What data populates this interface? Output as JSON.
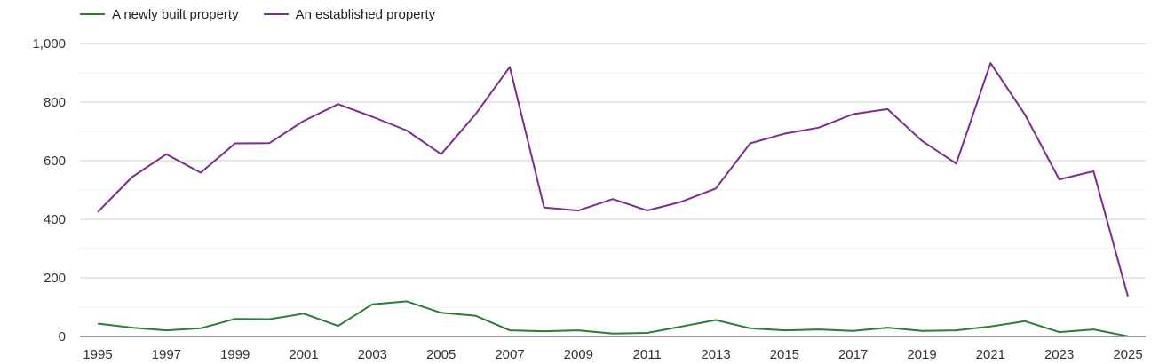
{
  "chart_data": {
    "type": "line",
    "title": "",
    "xlabel": "",
    "ylabel": "",
    "x": [
      1995,
      1996,
      1997,
      1998,
      1999,
      2000,
      2001,
      2002,
      2003,
      2004,
      2005,
      2006,
      2007,
      2008,
      2009,
      2010,
      2011,
      2012,
      2013,
      2014,
      2015,
      2016,
      2017,
      2018,
      2019,
      2020,
      2021,
      2022,
      2023,
      2024,
      2025
    ],
    "x_tick_labels": [
      "1995",
      "1997",
      "1999",
      "2001",
      "2003",
      "2005",
      "2007",
      "2009",
      "2011",
      "2013",
      "2015",
      "2017",
      "2019",
      "2021",
      "2023",
      "2025"
    ],
    "x_tick_values": [
      1995,
      1997,
      1999,
      2001,
      2003,
      2005,
      2007,
      2009,
      2011,
      2013,
      2015,
      2017,
      2019,
      2021,
      2023,
      2025
    ],
    "y_tick_labels": [
      "0",
      "200",
      "400",
      "600",
      "800",
      "1,000"
    ],
    "y_tick_values": [
      0,
      200,
      400,
      600,
      800,
      1000
    ],
    "ylim": [
      0,
      1000
    ],
    "xlim": [
      1995,
      2025
    ],
    "grid": "horizontal",
    "legend_position": "top-left",
    "series": [
      {
        "name": "A newly built property",
        "color": "#2e7d32",
        "values": [
          44,
          30,
          21,
          28,
          60,
          59,
          78,
          36,
          110,
          120,
          81,
          71,
          21,
          18,
          21,
          10,
          12,
          34,
          56,
          28,
          21,
          24,
          19,
          30,
          19,
          21,
          34,
          52,
          15,
          24,
          1
        ]
      },
      {
        "name": "An established property",
        "color": "#7b2d8e",
        "values": [
          425,
          544,
          622,
          559,
          659,
          660,
          736,
          793,
          750,
          703,
          622,
          758,
          920,
          440,
          430,
          469,
          430,
          460,
          505,
          659,
          692,
          713,
          759,
          776,
          668,
          590,
          933,
          758,
          536,
          564,
          137
        ]
      }
    ]
  }
}
